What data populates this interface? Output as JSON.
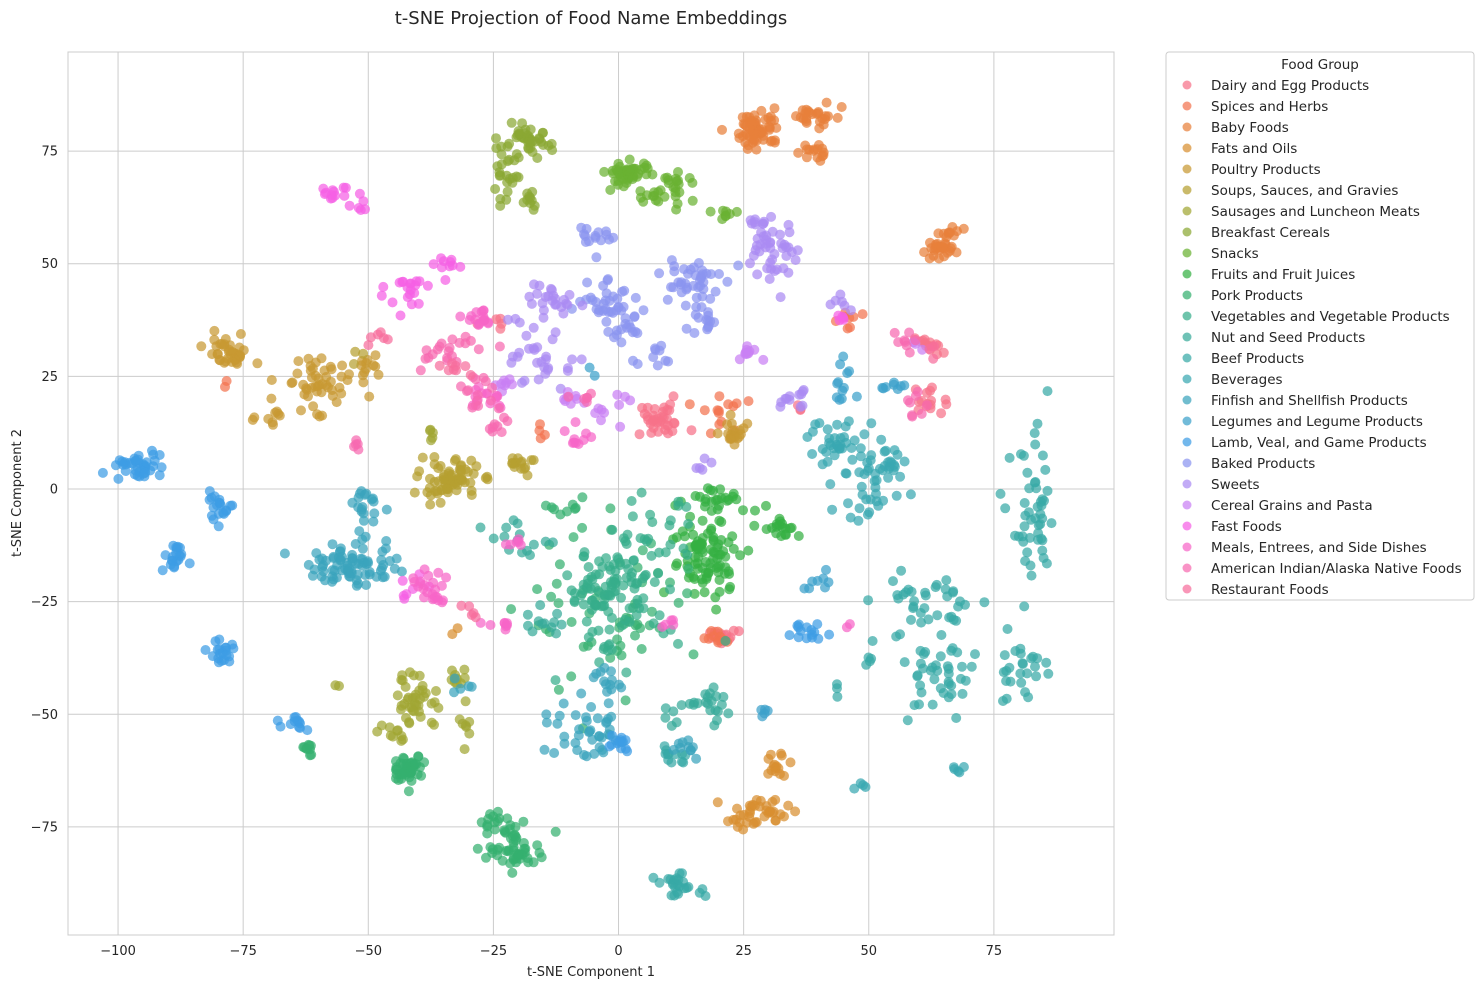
{
  "chart_data": {
    "type": "scatter",
    "title": "t-SNE Projection of Food Name Embeddings",
    "xlabel": "t-SNE Component 1",
    "ylabel": "t-SNE Component 2",
    "xlim": [
      -110,
      99
    ],
    "ylim": [
      -99,
      97
    ],
    "xticks": [
      -100,
      -75,
      -50,
      -25,
      0,
      25,
      50,
      75
    ],
    "yticks": [
      -75,
      -50,
      -25,
      0,
      25,
      50,
      75
    ],
    "grid": true,
    "legend": {
      "title": "Food Group",
      "position": "outside-top-right"
    },
    "series": [
      {
        "name": "Dairy and Egg Products",
        "color": "#f77189",
        "clusters": [
          [
            8,
            15,
            4,
            2.5,
            35
          ],
          [
            21,
            -33,
            2,
            1,
            20
          ],
          [
            62,
            20,
            2,
            2,
            15
          ],
          [
            62,
            32,
            2,
            1.5,
            15
          ],
          [
            36,
            17,
            1,
            1,
            3
          ],
          [
            -25,
            37,
            2,
            1,
            6
          ]
        ]
      },
      {
        "name": "Spices and Herbs",
        "color": "#f3734f",
        "clusters": [
          [
            20,
            16,
            3,
            4,
            15
          ],
          [
            20,
            -33,
            2,
            1,
            10
          ],
          [
            46,
            38,
            2,
            2,
            8
          ],
          [
            -15,
            12,
            1,
            2,
            4
          ],
          [
            -78,
            24,
            1,
            1,
            2
          ]
        ]
      },
      {
        "name": "Baby Foods",
        "color": "#e8803a",
        "clusters": [
          [
            28,
            80,
            3,
            3,
            60
          ],
          [
            40,
            83,
            3,
            2,
            25
          ],
          [
            38,
            75,
            2,
            1.5,
            15
          ],
          [
            64,
            53,
            2,
            1.5,
            25
          ],
          [
            66,
            57,
            2,
            1,
            10
          ]
        ]
      },
      {
        "name": "Fats and Oils",
        "color": "#d88f31",
        "clusters": [
          [
            28,
            -72,
            4,
            2,
            40
          ],
          [
            31,
            -61,
            2,
            2,
            15
          ],
          [
            -32,
            -32,
            1,
            1,
            2
          ]
        ]
      },
      {
        "name": "Poultry Products",
        "color": "#c89932",
        "clusters": [
          [
            -78,
            30,
            3,
            2.5,
            40
          ],
          [
            -60,
            24,
            5,
            4,
            50
          ],
          [
            -70,
            16,
            3,
            2,
            10
          ],
          [
            23,
            12,
            2,
            2,
            20
          ],
          [
            -50,
            27,
            2,
            2,
            10
          ]
        ]
      },
      {
        "name": "Soups, Sauces, and Gravies",
        "color": "#b59f31",
        "clusters": [
          [
            -34,
            2,
            4,
            3,
            70
          ],
          [
            -19,
            6,
            2,
            1.5,
            15
          ],
          [
            -52,
            30,
            1,
            1,
            3
          ]
        ]
      },
      {
        "name": "Sausages and Luncheon Meats",
        "color": "#a1a633",
        "clusters": [
          [
            -40,
            -47,
            3,
            4,
            40
          ],
          [
            -33,
            -42,
            2,
            2,
            10
          ],
          [
            -30,
            -52,
            1,
            3,
            8
          ],
          [
            -45,
            -55,
            2,
            2,
            10
          ],
          [
            -38,
            10,
            1,
            2,
            5
          ],
          [
            -57,
            -44,
            1,
            1,
            2
          ]
        ]
      },
      {
        "name": "Breakfast Cereals",
        "color": "#8ba833",
        "clusters": [
          [
            -18,
            77,
            3,
            2,
            40
          ],
          [
            -23,
            70,
            2,
            4,
            25
          ],
          [
            -18,
            64,
            1,
            1.5,
            10
          ]
        ]
      },
      {
        "name": "Snacks",
        "color": "#6ab232",
        "clusters": [
          [
            2,
            70,
            3,
            2,
            50
          ],
          [
            12,
            67,
            2,
            2,
            20
          ],
          [
            6,
            65,
            2,
            1,
            10
          ],
          [
            22,
            61,
            2,
            1,
            8
          ]
        ]
      },
      {
        "name": "Fruits and Fruit Juices",
        "color": "#35b043",
        "clusters": [
          [
            18,
            -15,
            5,
            6,
            90
          ],
          [
            19,
            -2,
            4,
            2,
            25
          ],
          [
            32,
            -8,
            3,
            2,
            20
          ]
        ]
      },
      {
        "name": "Pork Products",
        "color": "#34b06f",
        "clusters": [
          [
            -42,
            -62,
            2,
            2,
            50
          ],
          [
            -20,
            -80,
            4,
            3,
            50
          ],
          [
            -25,
            -74,
            2,
            2,
            15
          ],
          [
            -62,
            -58,
            1,
            1,
            10
          ],
          [
            0,
            -28,
            12,
            12,
            60
          ],
          [
            -10,
            -5,
            2,
            2,
            10
          ]
        ]
      },
      {
        "name": "Vegetables and Vegetable Products",
        "color": "#36ad8a",
        "clusters": [
          [
            -2,
            -22,
            6,
            5,
            80
          ],
          [
            5,
            -12,
            7,
            6,
            35
          ],
          [
            0,
            -35,
            8,
            5,
            20
          ]
        ]
      },
      {
        "name": "Nut and Seed Products",
        "color": "#37ab9a",
        "clusters": [
          [
            -20,
            -10,
            4,
            3,
            15
          ],
          [
            -15,
            -30,
            3,
            2,
            12
          ],
          [
            18,
            -48,
            4,
            3,
            20
          ],
          [
            11,
            -50,
            2,
            2,
            6
          ]
        ]
      },
      {
        "name": "Beef Products",
        "color": "#38a9a6",
        "clusters": [
          [
            83,
            -8,
            3,
            12,
            50
          ],
          [
            62,
            -26,
            7,
            6,
            40
          ],
          [
            64,
            -43,
            5,
            6,
            40
          ],
          [
            80,
            -40,
            4,
            5,
            25
          ],
          [
            12,
            -88,
            3,
            1.5,
            25
          ],
          [
            11,
            -59,
            2,
            1.5,
            12
          ],
          [
            44,
            -45,
            1,
            1,
            3
          ],
          [
            50,
            -38,
            2,
            1,
            4
          ]
        ]
      },
      {
        "name": "Beverages",
        "color": "#39a7b1",
        "clusters": [
          [
            45,
            10,
            5,
            4,
            40
          ],
          [
            50,
            0,
            5,
            5,
            30
          ],
          [
            55,
            6,
            2,
            2,
            15
          ],
          [
            68,
            -62,
            1,
            1,
            5
          ],
          [
            48,
            -66,
            1,
            1,
            4
          ]
        ]
      },
      {
        "name": "Finfish and Shellfish Products",
        "color": "#3aa4bd",
        "clusters": [
          [
            -53,
            -17,
            6,
            3,
            80
          ],
          [
            -50,
            -4,
            2,
            3,
            20
          ],
          [
            -6,
            -55,
            6,
            4,
            40
          ],
          [
            -3,
            -43,
            4,
            3,
            15
          ],
          [
            14,
            -58,
            3,
            2,
            10
          ],
          [
            -32,
            -44,
            2,
            1,
            5
          ]
        ]
      },
      {
        "name": "Legumes and Legume Products",
        "color": "#3ca1cb",
        "clusters": [
          [
            45,
            24,
            2,
            3,
            12
          ],
          [
            54,
            23,
            2,
            1,
            8
          ],
          [
            40,
            -20,
            3,
            2,
            8
          ],
          [
            29,
            -50,
            1,
            1.5,
            5
          ],
          [
            -4,
            26,
            1,
            1,
            2
          ]
        ]
      },
      {
        "name": "Lamb, Veal, and Game Products",
        "color": "#3d9ce4",
        "clusters": [
          [
            -96,
            5,
            3,
            2,
            40
          ],
          [
            -89,
            -15,
            2,
            2,
            20
          ],
          [
            -80,
            -4,
            2,
            2,
            20
          ],
          [
            -79,
            -36,
            2,
            2,
            20
          ],
          [
            -64,
            -52,
            2,
            1.5,
            12
          ],
          [
            38,
            -31,
            2,
            1.5,
            15
          ],
          [
            0,
            -56,
            2,
            1.5,
            12
          ]
        ]
      },
      {
        "name": "Baked Products",
        "color": "#8b94f0",
        "clusters": [
          [
            -5,
            56,
            2,
            3,
            15
          ],
          [
            -4,
            43,
            4,
            3,
            25
          ],
          [
            14,
            46,
            4,
            4,
            40
          ],
          [
            0,
            37,
            4,
            4,
            25
          ],
          [
            17,
            37,
            3,
            2,
            15
          ],
          [
            7,
            30,
            3,
            2,
            10
          ]
        ]
      },
      {
        "name": "Sweets",
        "color": "#ab8af2",
        "clusters": [
          [
            31,
            52,
            3,
            5,
            40
          ],
          [
            29,
            59,
            2,
            1,
            10
          ],
          [
            -12,
            42,
            5,
            4,
            25
          ],
          [
            -15,
            28,
            4,
            4,
            30
          ],
          [
            34,
            20,
            2,
            2,
            12
          ],
          [
            17,
            5,
            1,
            1,
            5
          ],
          [
            45,
            42,
            2,
            2,
            6
          ]
        ]
      },
      {
        "name": "Cereal Grains and Pasta",
        "color": "#c97ff4",
        "clusters": [
          [
            -3,
            18,
            3,
            2,
            10
          ],
          [
            -10,
            20,
            2,
            1,
            8
          ],
          [
            -22,
            24,
            2,
            1.5,
            8
          ],
          [
            26,
            30,
            2,
            1,
            10
          ],
          [
            60,
            32,
            1,
            1,
            3
          ]
        ]
      },
      {
        "name": "Fast Foods",
        "color": "#f560e4",
        "clusters": [
          [
            -57,
            66,
            2,
            1.5,
            12
          ],
          [
            -52,
            62,
            1,
            2,
            6
          ],
          [
            -42,
            44,
            3,
            3,
            20
          ],
          [
            -34,
            50,
            2,
            2,
            10
          ],
          [
            -42,
            -23,
            2,
            2,
            8
          ],
          [
            45,
            38,
            1,
            1,
            5
          ]
        ]
      },
      {
        "name": "Meals, Entrees, and Side Dishes",
        "color": "#f665c8",
        "clusters": [
          [
            -28,
            38,
            2,
            2,
            15
          ],
          [
            -27,
            20,
            3,
            2,
            15
          ],
          [
            -39,
            -21,
            3,
            2,
            15
          ],
          [
            -37,
            -24,
            2,
            1,
            8
          ],
          [
            -20,
            -12,
            2,
            1,
            6
          ],
          [
            -8,
            11,
            2,
            2,
            10
          ],
          [
            -23,
            -30,
            2,
            1,
            8
          ],
          [
            10,
            -30,
            1,
            1,
            5
          ],
          [
            46,
            -30,
            1,
            1,
            2
          ]
        ]
      },
      {
        "name": "American Indian/Alaska Native Foods",
        "color": "#f769b0",
        "clusters": [
          [
            -35,
            30,
            4,
            3,
            20
          ],
          [
            -28,
            22,
            3,
            3,
            15
          ],
          [
            -52,
            10,
            1,
            1,
            5
          ],
          [
            -24,
            14,
            2,
            2,
            8
          ],
          [
            -6,
            21,
            2,
            1,
            6
          ],
          [
            60,
            18,
            2,
            2,
            8
          ],
          [
            56,
            34,
            2,
            2,
            8
          ]
        ]
      },
      {
        "name": "Restaurant Foods",
        "color": "#f76d9c",
        "clusters": [
          [
            -33,
            27,
            2,
            1,
            8
          ],
          [
            -48,
            34,
            2,
            1,
            6
          ],
          [
            -30,
            -27,
            2,
            2,
            5
          ],
          [
            63,
            31,
            1,
            1,
            3
          ]
        ]
      }
    ]
  }
}
